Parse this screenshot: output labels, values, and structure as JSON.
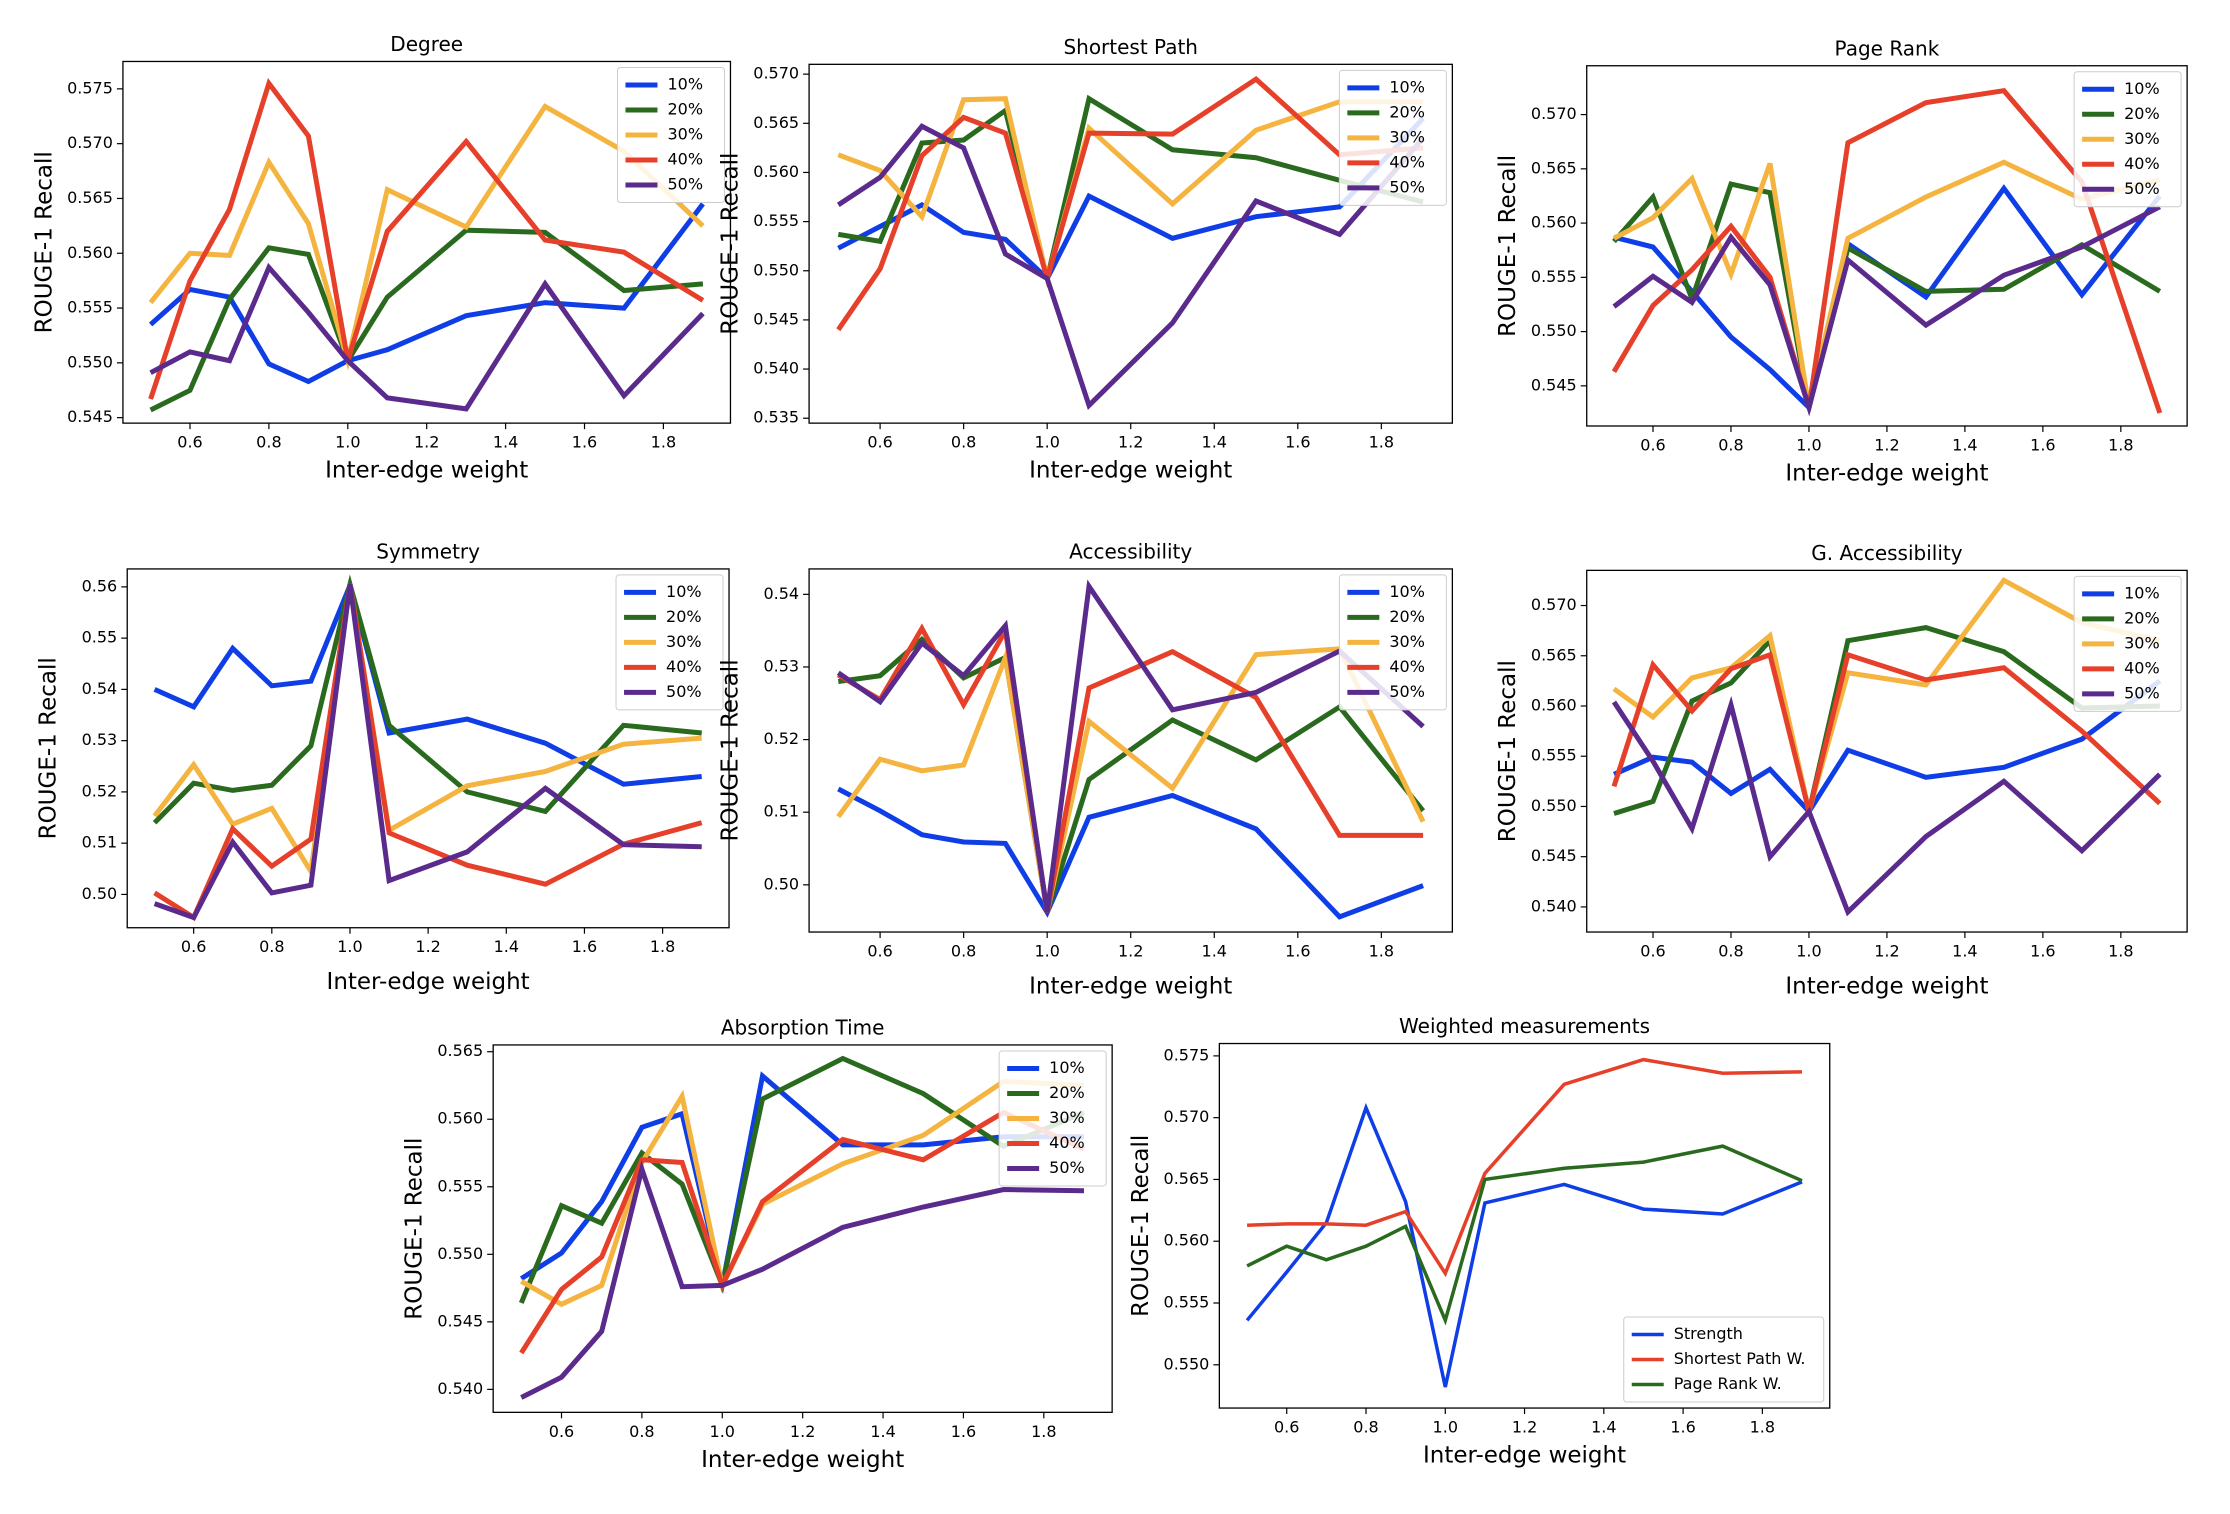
{
  "chart_data": [
    {
      "type": "line",
      "title": "Degree",
      "xlabel": "Inter-edge weight",
      "ylabel": "ROUGE-1 Recall",
      "x": [
        0.5,
        0.6,
        0.7,
        0.8,
        0.9,
        1.0,
        1.1,
        1.3,
        1.5,
        1.7,
        1.9
      ],
      "xlim": [
        0.43,
        1.97
      ],
      "ylim": [
        0.5445,
        0.5775
      ],
      "xticks": [
        0.6,
        0.8,
        {
          "value": 1.0,
          "label": "1.0"
        },
        1.2,
        1.4,
        1.6,
        1.8
      ],
      "yticks": [
        0.545,
        {
          "value": 0.55,
          "label": "0.550"
        },
        0.555,
        {
          "value": 0.56,
          "label": "0.560"
        },
        0.565,
        {
          "value": 0.57,
          "label": "0.570"
        },
        0.575
      ],
      "legend": "upper right",
      "series": [
        {
          "name": "10%",
          "color": "#0f3ee6",
          "values": [
            0.5535,
            0.5567,
            0.556,
            0.5499,
            0.5483,
            0.5502,
            0.5512,
            0.5543,
            0.5555,
            0.555,
            0.5645
          ]
        },
        {
          "name": "20%",
          "color": "#2a6a1f",
          "values": [
            0.5457,
            0.5475,
            0.5558,
            0.5605,
            0.5599,
            0.5502,
            0.556,
            0.5621,
            0.5619,
            0.5566,
            0.5572
          ]
        },
        {
          "name": "30%",
          "color": "#f4b43f",
          "values": [
            0.5555,
            0.56,
            0.5598,
            0.5683,
            0.5627,
            0.5502,
            0.5658,
            0.5624,
            0.5734,
            0.5693,
            0.5625
          ]
        },
        {
          "name": "40%",
          "color": "#e6402a",
          "values": [
            0.5467,
            0.5575,
            0.564,
            0.5755,
            0.5707,
            0.5502,
            0.562,
            0.5702,
            0.5612,
            0.5601,
            0.5557
          ]
        },
        {
          "name": "50%",
          "color": "#5a2a8c",
          "values": [
            0.5491,
            0.551,
            0.5502,
            0.5587,
            0.5546,
            0.5502,
            0.5468,
            0.5458,
            0.5572,
            0.547,
            0.5545
          ]
        }
      ]
    },
    {
      "type": "line",
      "title": "Shortest Path",
      "xlabel": "Inter-edge weight",
      "ylabel": "ROUGE-1 Recall",
      "x": [
        0.5,
        0.6,
        0.7,
        0.8,
        0.9,
        1.0,
        1.1,
        1.3,
        1.5,
        1.7,
        1.9
      ],
      "xlim": [
        0.43,
        1.97
      ],
      "ylim": [
        0.5345,
        0.571
      ],
      "xticks": [
        0.6,
        0.8,
        {
          "value": 1.0,
          "label": "1.0"
        },
        1.2,
        1.4,
        1.6,
        1.8
      ],
      "yticks": [
        0.535,
        {
          "value": 0.54,
          "label": "0.540"
        },
        0.545,
        {
          "value": 0.55,
          "label": "0.550"
        },
        0.555,
        {
          "value": 0.56,
          "label": "0.560"
        },
        0.565,
        {
          "value": 0.57,
          "label": "0.570"
        }
      ],
      "legend": "upper right",
      "series": [
        {
          "name": "10%",
          "color": "#0f3ee6",
          "values": [
            0.5523,
            0.5545,
            0.5567,
            0.5539,
            0.5532,
            0.5492,
            0.5576,
            0.5533,
            0.5555,
            0.5565,
            0.5655
          ]
        },
        {
          "name": "20%",
          "color": "#2a6a1f",
          "values": [
            0.5537,
            0.553,
            0.563,
            0.5633,
            0.5663,
            0.5492,
            0.5675,
            0.5623,
            0.5615,
            0.5592,
            0.557
          ]
        },
        {
          "name": "30%",
          "color": "#f4b43f",
          "values": [
            0.5618,
            0.5602,
            0.5555,
            0.5674,
            0.5675,
            0.5492,
            0.5645,
            0.5568,
            0.5643,
            0.5672,
            0.5672
          ]
        },
        {
          "name": "40%",
          "color": "#e6402a",
          "values": [
            0.544,
            0.5502,
            0.5617,
            0.5656,
            0.564,
            0.5492,
            0.564,
            0.5639,
            0.5695,
            0.5618,
            0.5625
          ]
        },
        {
          "name": "50%",
          "color": "#5a2a8c",
          "values": [
            0.5567,
            0.5595,
            0.5647,
            0.5625,
            0.5517,
            0.5492,
            0.5363,
            0.5447,
            0.5571,
            0.5537,
            0.5635
          ]
        }
      ]
    },
    {
      "type": "line",
      "title": "Page Rank",
      "xlabel": "Inter-edge weight",
      "ylabel": "ROUGE-1 Recall",
      "x": [
        0.5,
        0.6,
        0.7,
        0.8,
        0.9,
        1.0,
        1.1,
        1.3,
        1.5,
        1.7,
        1.9
      ],
      "xlim": [
        0.43,
        1.97
      ],
      "ylim": [
        0.5413,
        0.5745
      ],
      "xticks": [
        0.6,
        0.8,
        {
          "value": 1.0,
          "label": "1.0"
        },
        1.2,
        1.4,
        1.6,
        1.8
      ],
      "yticks": [
        0.545,
        {
          "value": 0.55,
          "label": "0.550"
        },
        0.555,
        {
          "value": 0.56,
          "label": "0.560"
        },
        0.565,
        {
          "value": 0.57,
          "label": "0.570"
        }
      ],
      "legend": "upper right",
      "series": [
        {
          "name": "10%",
          "color": "#0f3ee6",
          "values": [
            0.5587,
            0.5578,
            0.5537,
            0.5495,
            0.5465,
            0.543,
            0.5581,
            0.5532,
            0.5632,
            0.5534,
            0.5625
          ]
        },
        {
          "name": "20%",
          "color": "#2a6a1f",
          "values": [
            0.5583,
            0.5624,
            0.553,
            0.5636,
            0.5628,
            0.543,
            0.5577,
            0.5537,
            0.5539,
            0.558,
            0.5537
          ]
        },
        {
          "name": "30%",
          "color": "#f4b43f",
          "values": [
            0.5586,
            0.5605,
            0.5641,
            0.5553,
            0.5655,
            0.543,
            0.5586,
            0.5624,
            0.5656,
            0.5622,
            0.564
          ]
        },
        {
          "name": "40%",
          "color": "#e6402a",
          "values": [
            0.5463,
            0.5524,
            0.5557,
            0.5597,
            0.555,
            0.543,
            0.5674,
            0.5711,
            0.5722,
            0.5638,
            0.5425
          ]
        },
        {
          "name": "50%",
          "color": "#5a2a8c",
          "values": [
            0.5523,
            0.5551,
            0.5527,
            0.5587,
            0.5543,
            0.543,
            0.5566,
            0.5506,
            0.5552,
            0.5578,
            0.5615
          ]
        }
      ]
    },
    {
      "type": "line",
      "title": "Symmetry",
      "xlabel": "Inter-edge weight",
      "ylabel": "ROUGE-1 Recall",
      "x": [
        0.5,
        0.6,
        0.7,
        0.8,
        0.9,
        1.0,
        1.1,
        1.3,
        1.5,
        1.7,
        1.9
      ],
      "xlim": [
        0.43,
        1.97
      ],
      "ylim": [
        0.4935,
        0.5635
      ],
      "xticks": [
        0.6,
        0.8,
        {
          "value": 1.0,
          "label": "1.0"
        },
        1.2,
        1.4,
        1.6,
        1.8
      ],
      "yticks": [
        {
          "value": 0.5,
          "label": "0.50"
        },
        0.51,
        0.52,
        0.53,
        0.54,
        0.55,
        0.56
      ],
      "legend": "upper right",
      "series": [
        {
          "name": "10%",
          "color": "#0f3ee6",
          "values": [
            0.54,
            0.5366,
            0.548,
            0.5407,
            0.5416,
            0.5603,
            0.5315,
            0.5342,
            0.5295,
            0.5215,
            0.523
          ]
        },
        {
          "name": "20%",
          "color": "#2a6a1f",
          "values": [
            0.514,
            0.5217,
            0.5203,
            0.5213,
            0.529,
            0.5605,
            0.533,
            0.52,
            0.5162,
            0.533,
            0.5315
          ]
        },
        {
          "name": "30%",
          "color": "#f4b43f",
          "values": [
            0.5153,
            0.5253,
            0.5137,
            0.5168,
            0.5045,
            0.5605,
            0.5125,
            0.5212,
            0.524,
            0.5293,
            0.5305
          ]
        },
        {
          "name": "40%",
          "color": "#e6402a",
          "values": [
            0.5003,
            0.4955,
            0.5128,
            0.5055,
            0.5108,
            0.5605,
            0.512,
            0.5057,
            0.502,
            0.5098,
            0.514
          ]
        },
        {
          "name": "50%",
          "color": "#5a2a8c",
          "values": [
            0.4982,
            0.4955,
            0.5102,
            0.5003,
            0.5018,
            0.5605,
            0.5027,
            0.5083,
            0.5207,
            0.5097,
            0.5093
          ]
        }
      ]
    },
    {
      "type": "line",
      "title": "Accessibility",
      "xlabel": "Inter-edge weight",
      "ylabel": "ROUGE-1 Recall",
      "x": [
        0.5,
        0.6,
        0.7,
        0.8,
        0.9,
        1.0,
        1.1,
        1.3,
        1.5,
        1.7,
        1.9
      ],
      "xlim": [
        0.43,
        1.97
      ],
      "ylim": [
        0.4935,
        0.5435
      ],
      "xticks": [
        0.6,
        0.8,
        {
          "value": 1.0,
          "label": "1.0"
        },
        1.2,
        1.4,
        1.6,
        1.8
      ],
      "yticks": [
        {
          "value": 0.5,
          "label": "0.50"
        },
        0.51,
        0.52,
        0.53,
        0.54
      ],
      "legend": "upper right",
      "series": [
        {
          "name": "10%",
          "color": "#0f3ee6",
          "values": [
            0.5132,
            0.5102,
            0.5069,
            0.5059,
            0.5057,
            0.4962,
            0.5093,
            0.5123,
            0.5077,
            0.4956,
            0.4999
          ]
        },
        {
          "name": "20%",
          "color": "#2a6a1f",
          "values": [
            0.528,
            0.5288,
            0.5338,
            0.5285,
            0.5313,
            0.4962,
            0.5145,
            0.5227,
            0.5172,
            0.5245,
            0.5102
          ]
        },
        {
          "name": "30%",
          "color": "#f4b43f",
          "values": [
            0.5094,
            0.5173,
            0.5157,
            0.5165,
            0.5313,
            0.4962,
            0.5225,
            0.5133,
            0.5317,
            0.5325,
            0.5087
          ]
        },
        {
          "name": "40%",
          "color": "#e6402a",
          "values": [
            0.5289,
            0.5255,
            0.5353,
            0.5248,
            0.535,
            0.4962,
            0.5271,
            0.5321,
            0.5258,
            0.5068,
            0.5068
          ]
        },
        {
          "name": "50%",
          "color": "#5a2a8c",
          "values": [
            0.5292,
            0.5252,
            0.5333,
            0.5288,
            0.5357,
            0.4962,
            0.5411,
            0.5241,
            0.5265,
            0.5322,
            0.5218
          ]
        }
      ]
    },
    {
      "type": "line",
      "title": "G. Accessibility",
      "xlabel": "Inter-edge weight",
      "ylabel": "ROUGE-1 Recall",
      "x": [
        0.5,
        0.6,
        0.7,
        0.8,
        0.9,
        1.0,
        1.1,
        1.3,
        1.5,
        1.7,
        1.9
      ],
      "xlim": [
        0.43,
        1.97
      ],
      "ylim": [
        0.5375,
        0.5735
      ],
      "xticks": [
        0.6,
        0.8,
        {
          "value": 1.0,
          "label": "1.0"
        },
        1.2,
        1.4,
        1.6,
        1.8
      ],
      "yticks": [
        {
          "value": 0.54,
          "label": "0.540"
        },
        0.545,
        {
          "value": 0.55,
          "label": "0.550"
        },
        0.555,
        {
          "value": 0.56,
          "label": "0.560"
        },
        0.565,
        {
          "value": 0.57,
          "label": "0.570"
        }
      ],
      "legend": "upper right",
      "series": [
        {
          "name": "10%",
          "color": "#0f3ee6",
          "values": [
            0.5532,
            0.5549,
            0.5544,
            0.5513,
            0.5537,
            0.5495,
            0.5556,
            0.5529,
            0.5539,
            0.5567,
            0.5625
          ]
        },
        {
          "name": "20%",
          "color": "#2a6a1f",
          "values": [
            0.5493,
            0.5505,
            0.5605,
            0.5623,
            0.5665,
            0.5495,
            0.5665,
            0.5678,
            0.5654,
            0.5598,
            0.56
          ]
        },
        {
          "name": "30%",
          "color": "#f4b43f",
          "values": [
            0.5617,
            0.5589,
            0.5628,
            0.5638,
            0.567,
            0.5495,
            0.5633,
            0.5621,
            0.5725,
            0.5683,
            0.5665
          ]
        },
        {
          "name": "40%",
          "color": "#e6402a",
          "values": [
            0.552,
            0.5641,
            0.5595,
            0.5637,
            0.5651,
            0.5495,
            0.5651,
            0.5626,
            0.5638,
            0.5575,
            0.5503
          ]
        },
        {
          "name": "50%",
          "color": "#5a2a8c",
          "values": [
            0.5604,
            0.5545,
            0.5478,
            0.5601,
            0.545,
            0.5495,
            0.5395,
            0.547,
            0.5525,
            0.5456,
            0.5532
          ]
        }
      ]
    },
    {
      "type": "line",
      "title": "Absorption Time",
      "xlabel": "Inter-edge weight",
      "ylabel": "ROUGE-1 Recall",
      "x": [
        0.5,
        0.6,
        0.7,
        0.8,
        0.9,
        1.0,
        1.1,
        1.3,
        1.5,
        1.7,
        1.9
      ],
      "xlim": [
        0.43,
        1.97
      ],
      "ylim": [
        0.5383,
        0.5655
      ],
      "xticks": [
        0.6,
        0.8,
        {
          "value": 1.0,
          "label": "1.0"
        },
        1.2,
        1.4,
        1.6,
        1.8
      ],
      "yticks": [
        {
          "value": 0.54,
          "label": "0.540"
        },
        0.545,
        {
          "value": 0.55,
          "label": "0.550"
        },
        0.555,
        {
          "value": 0.56,
          "label": "0.560"
        },
        0.565
      ],
      "legend": "upper right",
      "series": [
        {
          "name": "10%",
          "color": "#0f3ee6",
          "values": [
            0.5482,
            0.5501,
            0.5539,
            0.5594,
            0.5604,
            0.5477,
            0.5632,
            0.5581,
            0.5581,
            0.5587,
            0.5587
          ]
        },
        {
          "name": "20%",
          "color": "#2a6a1f",
          "values": [
            0.5464,
            0.5536,
            0.5523,
            0.5575,
            0.5552,
            0.5477,
            0.5615,
            0.5645,
            0.5619,
            0.558,
            0.5605
          ]
        },
        {
          "name": "30%",
          "color": "#f4b43f",
          "values": [
            0.548,
            0.5463,
            0.5477,
            0.5568,
            0.5617,
            0.5477,
            0.5537,
            0.5567,
            0.5588,
            0.5628,
            0.5625
          ]
        },
        {
          "name": "40%",
          "color": "#e6402a",
          "values": [
            0.5427,
            0.5474,
            0.5498,
            0.557,
            0.5568,
            0.5477,
            0.5539,
            0.5585,
            0.557,
            0.5605,
            0.5578
          ]
        },
        {
          "name": "50%",
          "color": "#5a2a8c",
          "values": [
            0.5394,
            0.5409,
            0.5443,
            0.5563,
            0.5476,
            0.5477,
            0.5489,
            0.552,
            0.5535,
            0.5548,
            0.5547
          ]
        }
      ]
    },
    {
      "type": "line",
      "title": "Weighted measurements",
      "xlabel": "Inter-edge weight",
      "ylabel": "ROUGE-1 Recall",
      "x": [
        0.5,
        0.6,
        0.7,
        0.8,
        0.9,
        1.0,
        1.1,
        1.3,
        1.5,
        1.7,
        1.9
      ],
      "xlim": [
        0.43,
        1.97
      ],
      "ylim": [
        0.5465,
        0.576
      ],
      "xticks": [
        0.6,
        0.8,
        {
          "value": 1.0,
          "label": "1.0"
        },
        1.2,
        1.4,
        1.6,
        1.8
      ],
      "yticks": [
        {
          "value": 0.55,
          "label": "0.550"
        },
        0.555,
        {
          "value": 0.56,
          "label": "0.560"
        },
        0.565,
        {
          "value": 0.57,
          "label": "0.570"
        },
        0.575
      ],
      "legend": "lower right",
      "series": [
        {
          "name": "Strength",
          "color": "#0f3ee6",
          "values": [
            0.5536,
            0.5575,
            0.5615,
            0.5708,
            0.5632,
            0.5482,
            0.5631,
            0.5646,
            0.5626,
            0.5622,
            0.5648
          ]
        },
        {
          "name": "Shortest Path W.",
          "color": "#e6402a",
          "values": [
            0.5613,
            0.5614,
            0.5614,
            0.5613,
            0.5624,
            0.5574,
            0.5655,
            0.5727,
            0.5747,
            0.5736,
            0.5737
          ]
        },
        {
          "name": "Page Rank W.",
          "color": "#2a6a1f",
          "values": [
            0.558,
            0.5596,
            0.5585,
            0.5596,
            0.5612,
            0.5536,
            0.565,
            0.5659,
            0.5664,
            0.5677,
            0.5649
          ]
        }
      ]
    }
  ]
}
